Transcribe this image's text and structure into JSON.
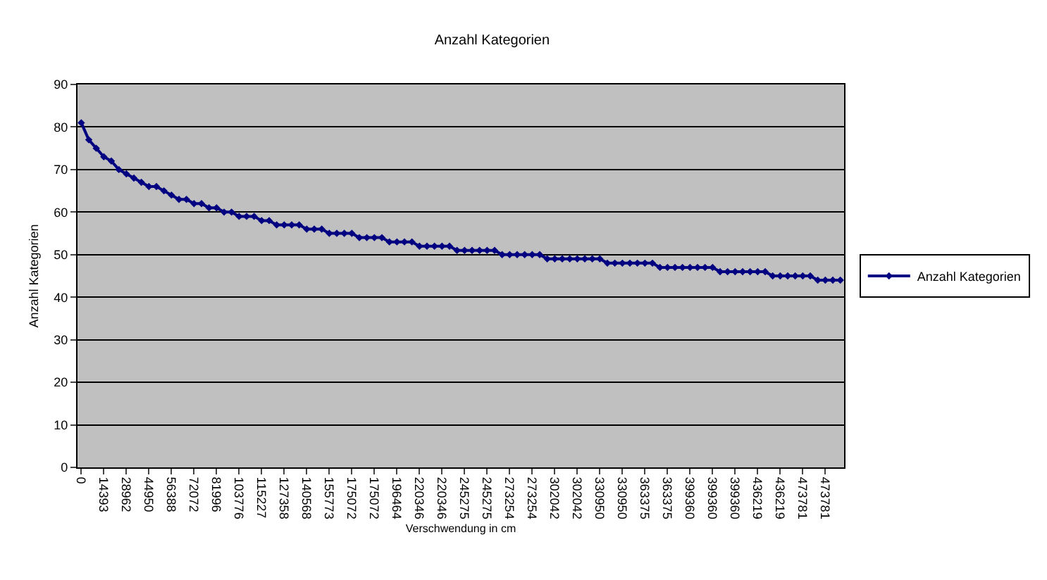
{
  "chart_data": {
    "type": "line",
    "title": "Anzahl Kategorien",
    "xlabel": "Verschwendung in cm",
    "ylabel": "Anzahl Kategorien",
    "categories": [
      "0",
      null,
      null,
      "14393",
      null,
      null,
      "28962",
      null,
      null,
      "44950",
      null,
      null,
      "56388",
      null,
      null,
      "72072",
      null,
      null,
      "81996",
      null,
      null,
      "103776",
      null,
      null,
      "115227",
      null,
      null,
      "127358",
      null,
      null,
      "140568",
      null,
      null,
      "155773",
      null,
      null,
      "175072",
      null,
      null,
      "175072",
      null,
      null,
      "196464",
      null,
      null,
      "220346",
      null,
      null,
      "220346",
      null,
      null,
      "245275",
      null,
      null,
      "245275",
      null,
      null,
      "273254",
      null,
      null,
      "273254",
      null,
      null,
      "302042",
      null,
      null,
      "302042",
      null,
      null,
      "330950",
      null,
      null,
      "330950",
      null,
      null,
      "363375",
      null,
      null,
      "363375",
      null,
      null,
      "399360",
      null,
      null,
      "399360",
      null,
      null,
      "399360",
      null,
      null,
      "436219",
      null,
      null,
      "436219",
      null,
      null,
      "473781",
      null,
      null,
      "473781",
      null,
      null
    ],
    "series": [
      {
        "name": "Anzahl Kategorien",
        "color": "#000080",
        "values": [
          81,
          77,
          75,
          73,
          72,
          70,
          69,
          68,
          67,
          66,
          66,
          65,
          64,
          63,
          63,
          62,
          62,
          61,
          61,
          60,
          60,
          59,
          59,
          59,
          58,
          58,
          57,
          57,
          57,
          57,
          56,
          56,
          56,
          55,
          55,
          55,
          55,
          54,
          54,
          54,
          54,
          53,
          53,
          53,
          53,
          52,
          52,
          52,
          52,
          52,
          51,
          51,
          51,
          51,
          51,
          51,
          50,
          50,
          50,
          50,
          50,
          50,
          49,
          49,
          49,
          49,
          49,
          49,
          49,
          49,
          48,
          48,
          48,
          48,
          48,
          48,
          48,
          47,
          47,
          47,
          47,
          47,
          47,
          47,
          47,
          46,
          46,
          46,
          46,
          46,
          46,
          46,
          45,
          45,
          45,
          45,
          45,
          45,
          44,
          44,
          44,
          44
        ]
      }
    ],
    "ylim": [
      0,
      90
    ],
    "yticks": [
      0,
      10,
      20,
      30,
      40,
      50,
      60,
      70,
      80,
      90
    ],
    "grid": "y",
    "legend": "right",
    "marker": "diamond",
    "line_style": "solid"
  }
}
